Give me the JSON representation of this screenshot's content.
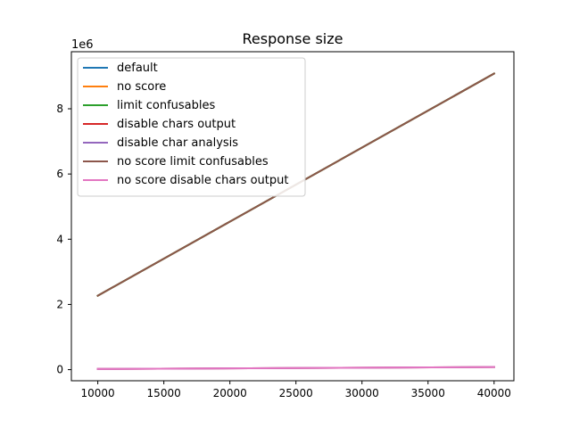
{
  "chart_data": {
    "type": "line",
    "title": "Response size",
    "xlabel": "",
    "ylabel": "",
    "y_offset_label": "1e6",
    "xlim": [
      8000,
      41500
    ],
    "ylim": [
      -0.34,
      9.75
    ],
    "y_scale_factor": 1000000,
    "x_ticks": [
      10000,
      15000,
      20000,
      25000,
      30000,
      35000,
      40000
    ],
    "x_tick_labels": [
      "10000",
      "15000",
      "20000",
      "25000",
      "30000",
      "35000",
      "40000"
    ],
    "y_ticks": [
      0,
      2,
      4,
      6,
      8
    ],
    "y_tick_labels": [
      "0",
      "2",
      "4",
      "6",
      "8"
    ],
    "grid": false,
    "legend_position": "top-left",
    "x": [
      10000,
      40000
    ],
    "series": [
      {
        "name": "default",
        "color": "#1f77b4",
        "values": [
          2.27,
          9.08
        ]
      },
      {
        "name": "no score",
        "color": "#ff7f0e",
        "values": [
          2.27,
          9.08
        ]
      },
      {
        "name": "limit confusables",
        "color": "#2ca02c",
        "values": [
          2.27,
          9.08
        ]
      },
      {
        "name": "disable chars output",
        "color": "#d62728",
        "values": [
          0.02,
          0.08
        ]
      },
      {
        "name": "disable char analysis",
        "color": "#9467bd",
        "values": [
          0.02,
          0.08
        ]
      },
      {
        "name": "no score limit confusables",
        "color": "#8c564b",
        "values": [
          2.27,
          9.08
        ]
      },
      {
        "name": "no score disable chars output",
        "color": "#e377c2",
        "values": [
          0.02,
          0.08
        ]
      }
    ]
  }
}
